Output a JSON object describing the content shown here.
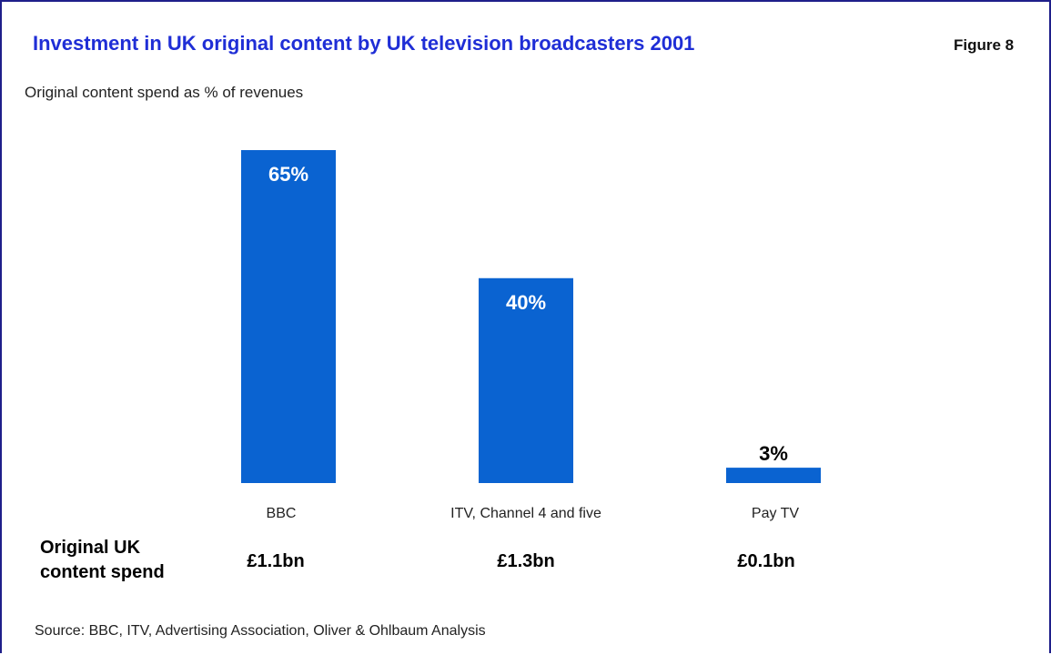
{
  "title": "Investment in UK original content by UK television broadcasters 2001",
  "figure_label": "Figure 8",
  "subtitle": "Original content spend as % of revenues",
  "row_label": "Original UK content spend",
  "source": "Source: BBC, ITV, Advertising Association, Oliver & Ohlbaum Analysis",
  "colors": {
    "bar": "#0a63d1",
    "title": "#1f2ed6"
  },
  "spend": [
    "£1.1bn",
    "£1.3bn",
    "£0.1bn"
  ],
  "chart_data": {
    "type": "bar",
    "title": "Investment in UK original content by UK television broadcasters 2001",
    "subtitle": "Original content spend as % of revenues",
    "categories": [
      "BBC",
      "ITV, Channel 4 and five",
      "Pay TV"
    ],
    "values": [
      65,
      40,
      3
    ],
    "data_labels": [
      "65%",
      "40%",
      "3%"
    ],
    "unit": "%",
    "grid": false,
    "legend": "none"
  }
}
